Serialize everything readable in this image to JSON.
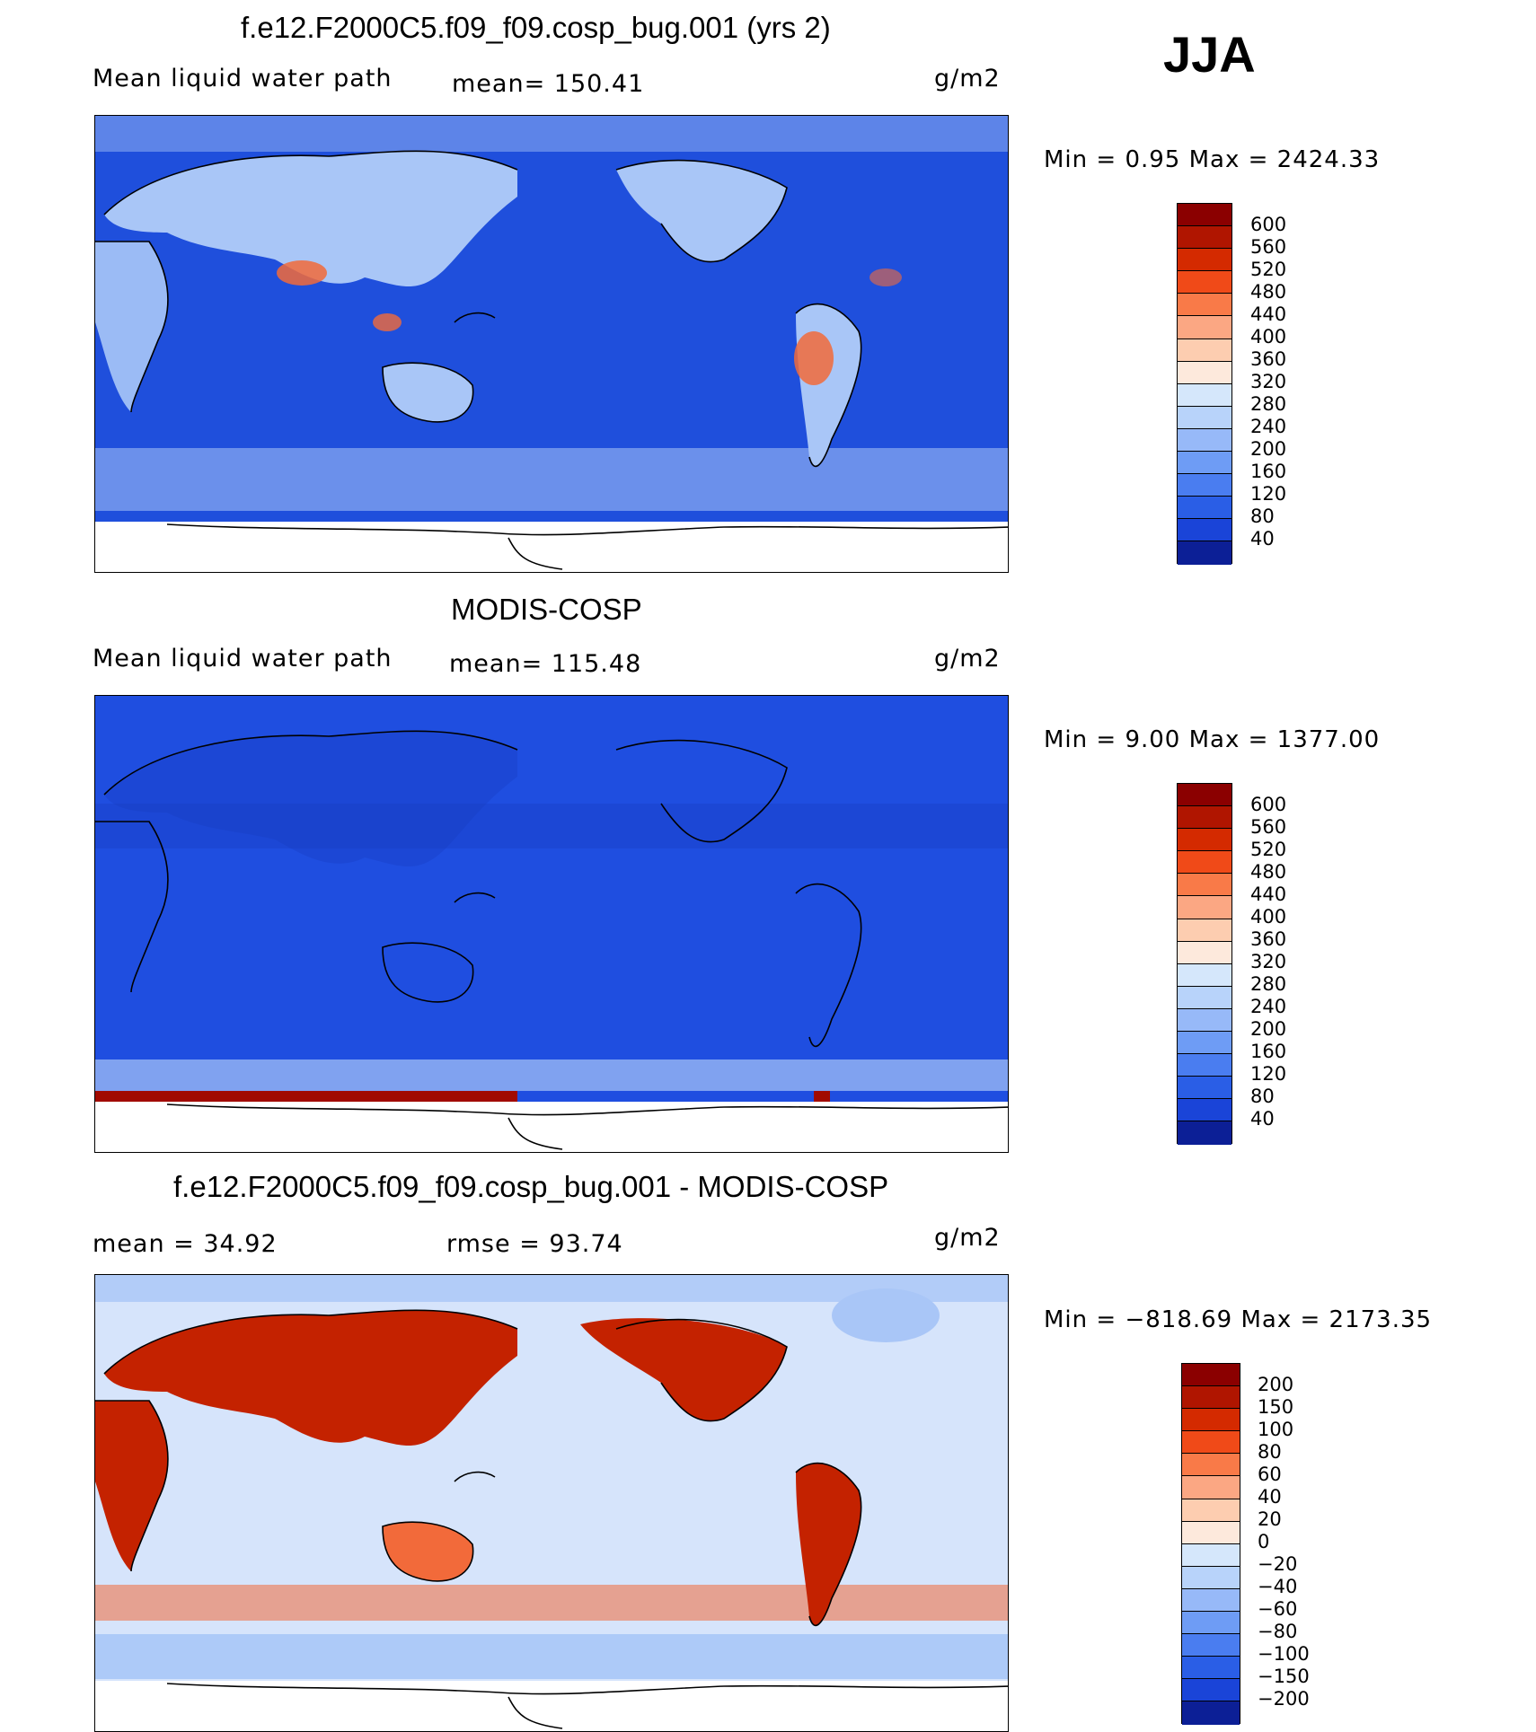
{
  "season": "JJA",
  "panels": [
    {
      "title": "f.e12.F2000C5.f09_f09.cosp_bug.001 (yrs 2)",
      "left_label": "Mean liquid water path",
      "mid_label": "mean= 150.41",
      "units": "g/m2",
      "minmax": "Min =    0.95 Max = 2424.33",
      "colorbar": {
        "levels": [
          "600",
          "560",
          "520",
          "480",
          "440",
          "400",
          "360",
          "320",
          "280",
          "240",
          "200",
          "160",
          "120",
          "80",
          "40"
        ],
        "colors": [
          "#8b0000",
          "#b01500",
          "#d42a00",
          "#f04a18",
          "#f97a48",
          "#fba783",
          "#fdcdb0",
          "#fde9dc",
          "#d5e7fb",
          "#b8d3fa",
          "#97b9f8",
          "#6e9cf5",
          "#4a7df0",
          "#2a5ee6",
          "#1a44d8",
          "#0c1f96"
        ]
      }
    },
    {
      "title": "MODIS-COSP",
      "left_label": "Mean liquid water path",
      "mid_label": "mean= 115.48",
      "units": "g/m2",
      "minmax": "Min =    9.00 Max = 1377.00",
      "colorbar": {
        "levels": [
          "600",
          "560",
          "520",
          "480",
          "440",
          "400",
          "360",
          "320",
          "280",
          "240",
          "200",
          "160",
          "120",
          "80",
          "40"
        ],
        "colors": [
          "#8b0000",
          "#b01500",
          "#d42a00",
          "#f04a18",
          "#f97a48",
          "#fba783",
          "#fdcdb0",
          "#fde9dc",
          "#d5e7fb",
          "#b8d3fa",
          "#97b9f8",
          "#6e9cf5",
          "#4a7df0",
          "#2a5ee6",
          "#1a44d8",
          "#0c1f96"
        ]
      }
    },
    {
      "title": "f.e12.F2000C5.f09_f09.cosp_bug.001 - MODIS-COSP",
      "left_label": "mean =   34.92",
      "mid_label": "rmse =   93.74",
      "units": "g/m2",
      "minmax": "Min = −818.69 Max = 2173.35",
      "colorbar": {
        "levels": [
          "200",
          "150",
          "100",
          "80",
          "60",
          "40",
          "20",
          "0",
          "−20",
          "−40",
          "−60",
          "−80",
          "−100",
          "−150",
          "−200"
        ],
        "colors": [
          "#8b0000",
          "#b01500",
          "#d42a00",
          "#f04a18",
          "#f97a48",
          "#fba783",
          "#fdcdb0",
          "#fde9dc",
          "#d5e7fb",
          "#b8d3fa",
          "#97b9f8",
          "#6e9cf5",
          "#4a7df0",
          "#2a5ee6",
          "#1a44d8",
          "#0c1f96"
        ]
      }
    }
  ],
  "map_colors": {
    "ocean_model": "#1f4fdc",
    "ocean_obs": "#1f4ee0",
    "land_light": "#a9c6f7",
    "warm_land": "#f26a3a",
    "diff_ocean": "#d6e4fb",
    "diff_land": "#c42200",
    "antarctic_high": "#a10a00",
    "coast": "#000000"
  }
}
